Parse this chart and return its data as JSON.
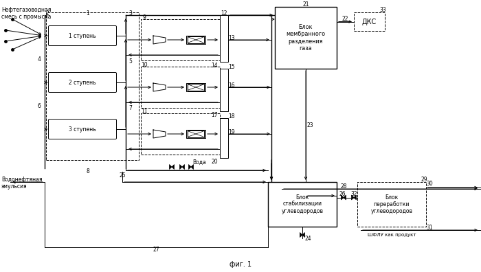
{
  "title": "фиг. 1",
  "bg_color": "#ffffff",
  "input_label": "Нефтегазоводная\nсмесь с промысла",
  "water_oil_label": "Водонефтяная\nэмульсия",
  "water_label": "Вода",
  "block1_label": "Блок\nмембранного\nразделения\nгаза",
  "block2_label": "Блок\nстабилизации\nуглеводородов",
  "block3_label": "Блок\nпереработки\nуглеводородов",
  "dks_label": "ДКС",
  "shflu_label": "ШФЛУ как продукт",
  "stage1_label": "1 ступень",
  "stage2_label": "2 ступень",
  "stage3_label": "3 ступень"
}
